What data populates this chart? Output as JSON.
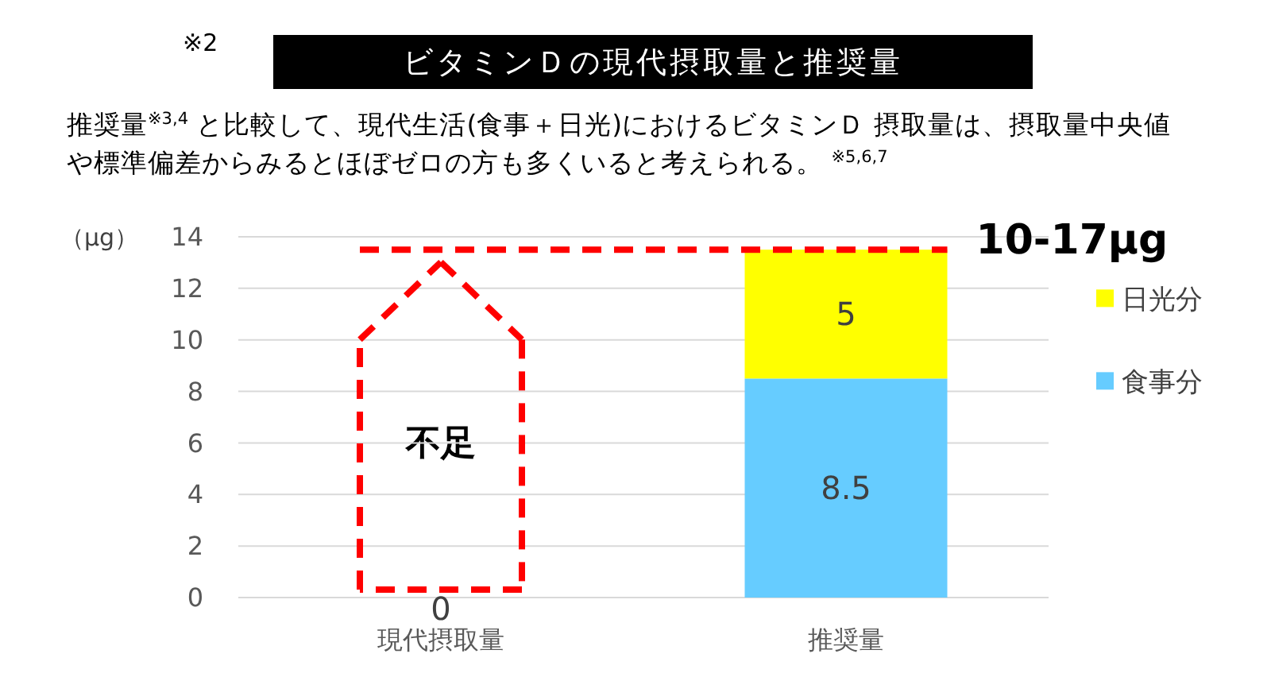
{
  "chart_data": {
    "type": "bar",
    "title": "ビタミンＤの現代摂取量と推奨量",
    "subtitle": "推奨量$^{※3,4}$ と比較して、現代生活(食事＋日光)におけるビタミンＤ 摂取量は、摂取量中央値や標準偏差からみるとほぼゼロの方も多くいると考えられる。 $^{※5,6,7}$",
    "ylabel": "（μg）",
    "categories": [
      "現代摂取量",
      "推奨量"
    ],
    "stacked": true,
    "series": [
      {
        "name": "食事分",
        "color": "#66ccff",
        "values": [
          0,
          8.5
        ],
        "value_labels": [
          "0",
          "8.5"
        ]
      },
      {
        "name": "日光分",
        "color": "#ffff00",
        "values": [
          0,
          5
        ],
        "value_labels": [
          null,
          "5"
        ]
      }
    ],
    "ylim": [
      0,
      14
    ],
    "yticks": [
      0,
      2,
      4,
      6,
      8,
      10,
      12,
      14
    ],
    "grid": "y",
    "legend": "right",
    "ref_lines": [
      {
        "axis": "y",
        "value": 13.5,
        "label": "10-17μg",
        "color": "#ff0000",
        "line_style": "dashed"
      }
    ],
    "annotations": [
      "※2",
      "不足"
    ]
  }
}
